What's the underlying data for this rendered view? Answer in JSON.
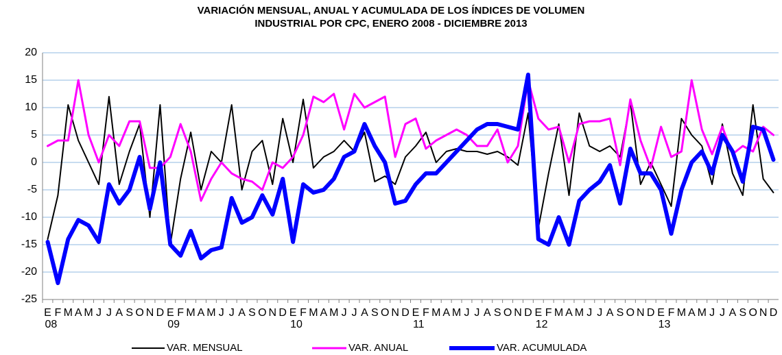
{
  "chart_data": {
    "type": "line",
    "title": [
      "VARIACIÓN MENSUAL, ANUAL Y ACUMULADA DE LOS ÍNDICES DE VOLUMEN",
      "INDUSTRIAL POR CPC, ENERO 2008 - DICIEMBRE 2013"
    ],
    "categories": [
      "E",
      "F",
      "M",
      "A",
      "M",
      "J",
      "J",
      "A",
      "S",
      "O",
      "N",
      "D",
      "E",
      "F",
      "M",
      "A",
      "M",
      "J",
      "J",
      "A",
      "S",
      "O",
      "N",
      "D",
      "E",
      "F",
      "M",
      "A",
      "M",
      "J",
      "J",
      "A",
      "S",
      "O",
      "N",
      "D",
      "E",
      "F",
      "M",
      "A",
      "M",
      "J",
      "J",
      "A",
      "S",
      "O",
      "N",
      "D",
      "E",
      "F",
      "M",
      "A",
      "M",
      "J",
      "J",
      "A",
      "S",
      "O",
      "N",
      "D",
      "E",
      "F",
      "M",
      "A",
      "M",
      "J",
      "J",
      "A",
      "S",
      "O",
      "N",
      "D"
    ],
    "category_years": [
      "08",
      null,
      null,
      null,
      null,
      null,
      null,
      null,
      null,
      null,
      null,
      null,
      "09",
      null,
      null,
      null,
      null,
      null,
      null,
      null,
      null,
      null,
      null,
      null,
      "10",
      null,
      null,
      null,
      null,
      null,
      null,
      null,
      null,
      null,
      null,
      null,
      "11",
      null,
      null,
      null,
      null,
      null,
      null,
      null,
      null,
      null,
      null,
      null,
      "12",
      null,
      null,
      null,
      null,
      null,
      null,
      null,
      null,
      null,
      null,
      null,
      "13",
      null,
      null,
      null,
      null,
      null,
      null,
      null,
      null,
      null,
      null,
      null
    ],
    "series": [
      {
        "name": "VAR. MENSUAL",
        "color": "#000000",
        "values": [
          -14,
          -6,
          10.5,
          4,
          0,
          -4,
          12,
          -4,
          2,
          7,
          -10,
          10.5,
          -15,
          -3,
          5.5,
          -5,
          2,
          0,
          10.5,
          -5,
          2,
          4,
          -4,
          8,
          0,
          11.5,
          -1,
          1,
          2,
          4,
          2,
          5.5,
          -3.5,
          -2.5,
          -4,
          1,
          3,
          5.5,
          0,
          2,
          2.5,
          2,
          2,
          1.5,
          2,
          1,
          -0.5,
          9,
          -12,
          -2,
          7,
          -6,
          9,
          3,
          2,
          3,
          1,
          11,
          -4,
          0,
          -4,
          -8,
          8,
          5,
          3,
          -4,
          7,
          -2,
          -6,
          10.5,
          -3,
          -5.5
        ]
      },
      {
        "name": "VAR. ANUAL",
        "color": "#ff00ff",
        "values": [
          3,
          4,
          4,
          15,
          5,
          0,
          5,
          3,
          7.5,
          7.5,
          -1,
          -1,
          1,
          7,
          2,
          -7,
          -3,
          0,
          -2,
          -3,
          -3.5,
          -5,
          0,
          -1,
          1,
          5,
          12,
          11,
          12.5,
          6,
          12.5,
          10,
          11,
          12,
          1,
          7,
          8,
          2.5,
          4,
          5,
          6,
          5,
          3,
          3,
          6,
          0,
          3,
          15,
          8,
          6,
          6.5,
          0,
          7,
          7.5,
          7.5,
          8,
          -0.5,
          11.5,
          4,
          -1,
          6.5,
          1,
          2,
          15,
          6,
          1.5,
          6.5,
          1.5,
          3,
          2,
          6.5,
          5
        ]
      },
      {
        "name": "VAR. ACUMULADA",
        "color": "#0000ff",
        "values": [
          -14.5,
          -22,
          -14,
          -10.5,
          -11.5,
          -14.5,
          -4,
          -7.5,
          -5,
          1,
          -8.5,
          0,
          -15,
          -17,
          -12.5,
          -17.5,
          -16,
          -15.5,
          -6.5,
          -11,
          -10,
          -6,
          -9.5,
          -3,
          -14.5,
          -4,
          -5.5,
          -5,
          -3,
          1,
          2,
          7,
          3,
          0,
          -7.5,
          -7,
          -4,
          -2,
          -2,
          0,
          2,
          4,
          6,
          7,
          7,
          6.5,
          6,
          16,
          -14,
          -15,
          -10,
          -15,
          -7,
          -5,
          -3.5,
          -0.5,
          -7.5,
          2.5,
          -2,
          -2,
          -5,
          -13,
          -5,
          0,
          2,
          -2,
          5,
          2,
          -3.5,
          6.5,
          6,
          0.5
        ]
      }
    ],
    "ylim": [
      -25,
      20
    ],
    "yticks": [
      -25,
      -20,
      -15,
      -10,
      -5,
      0,
      5,
      10,
      15,
      20
    ],
    "grid": true,
    "legend": "bottom"
  }
}
